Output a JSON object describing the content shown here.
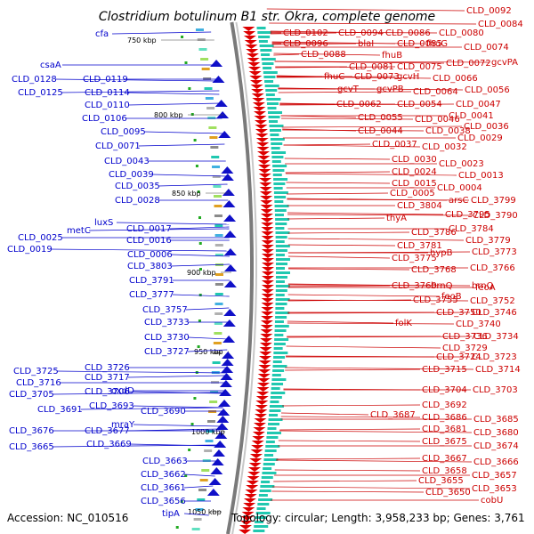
{
  "title": "Clostridium botulinum B1 str. Okra, complete genome",
  "accession": "Accession: NC_010516",
  "summary": "Topology: circular; Length: 3,958,233 bp; Genes: 3,761",
  "colors": {
    "plus_strand": "#dd0000",
    "minus_strand": "#1010c8",
    "backbone": "#7a7a7a",
    "tick_marker": "#22aa22",
    "label_plus": "#cc0000",
    "label_minus": "#0000cc"
  },
  "ruler_ticks": [
    "750 kbp",
    "800 kbp",
    "850 kbp",
    "900 kbp",
    "950 kbp",
    "1000 kbp",
    "1050 kbp"
  ],
  "minus_labels": [
    "cfa",
    "csaA",
    "CLD_0128",
    "CLD_0125",
    "CLD_0119",
    "CLD_0114",
    "CLD_0110",
    "CLD_0106",
    "CLD_0095",
    "CLD_0071",
    "CLD_0043",
    "CLD_0039",
    "CLD_0035",
    "CLD_0028",
    "luxS",
    "metC",
    "CLD_0025",
    "CLD_0019",
    "CLD_0017",
    "CLD_0016",
    "CLD_0006",
    "CLD_3803",
    "CLD_3791",
    "CLD_3777",
    "CLD_3757",
    "CLD_3733",
    "CLD_3730",
    "CLD_3727",
    "CLD_3726",
    "CLD_3725",
    "CLD_3717",
    "CLD_3716",
    "CLD_3706",
    "CLD_3705",
    "oxdD",
    "CLD_3693",
    "CLD_3691",
    "CLD_3690",
    "mraY",
    "CLD_3677",
    "CLD_3676",
    "CLD_3669",
    "CLD_3665",
    "CLD_3663",
    "CLD_3662",
    "CLD_3661",
    "CLD_3656",
    "tipA"
  ],
  "plus_labels": [
    "CLD_0092",
    "CLD_0084",
    "CLD_0102",
    "CLD_0094",
    "CLD_0086",
    "CLD_0080",
    "CLD_0096",
    "blaI",
    "CLD_0085",
    "fhuG",
    "CLD_0074",
    "CLD_0088",
    "fhuB",
    "gcvPA",
    "CLD_0081",
    "CLD_0075",
    "CLD_0072",
    "fhuC",
    "CLD_0073",
    "gcvH",
    "CLD_0066",
    "gcvT",
    "gcvPB",
    "CLD_0064",
    "CLD_0056",
    "CLD_0062",
    "CLD_0054",
    "CLD_0047",
    "CLD_0055",
    "CLD_0046",
    "CLD_0041",
    "CLD_0036",
    "CLD_0044",
    "CLD_0038",
    "CLD_0029",
    "CLD_0037",
    "CLD_0032",
    "CLD_0030",
    "CLD_0023",
    "CLD_0024",
    "CLD_0013",
    "CLD_0015",
    "CLD_0004",
    "CLD_0005",
    "arsC",
    "CLD_3799",
    "CLD_3804",
    "thyA",
    "CLD_3795",
    "CLD_3790",
    "CLD_3784",
    "CLD_3786",
    "CLD_3779",
    "CLD_3781",
    "hypB",
    "CLD_3773",
    "CLD_3775",
    "CLD_3768",
    "CLD_3766",
    "CLD_3760",
    "brnQ",
    "brnQ",
    "feoA",
    "CLD_3755",
    "feoB",
    "CLD_3752",
    "CLD_3750",
    "CLD_3746",
    "folK",
    "CLD_3740",
    "CLD_3736",
    "CLD_3734",
    "CLD_3729",
    "CLD_3724",
    "CLD_3723",
    "CLD_3715",
    "CLD_3714",
    "CLD_3704",
    "CLD_3703",
    "CLD_3692",
    "CLD_3687",
    "CLD_3686",
    "CLD_3685",
    "CLD_3681",
    "CLD_3680",
    "CLD_3675",
    "CLD_3674",
    "CLD_3667",
    "CLD_3666",
    "CLD_3658",
    "CLD_3657",
    "CLD_3655",
    "CLD_3653",
    "CLD_3650",
    "cobU"
  ]
}
